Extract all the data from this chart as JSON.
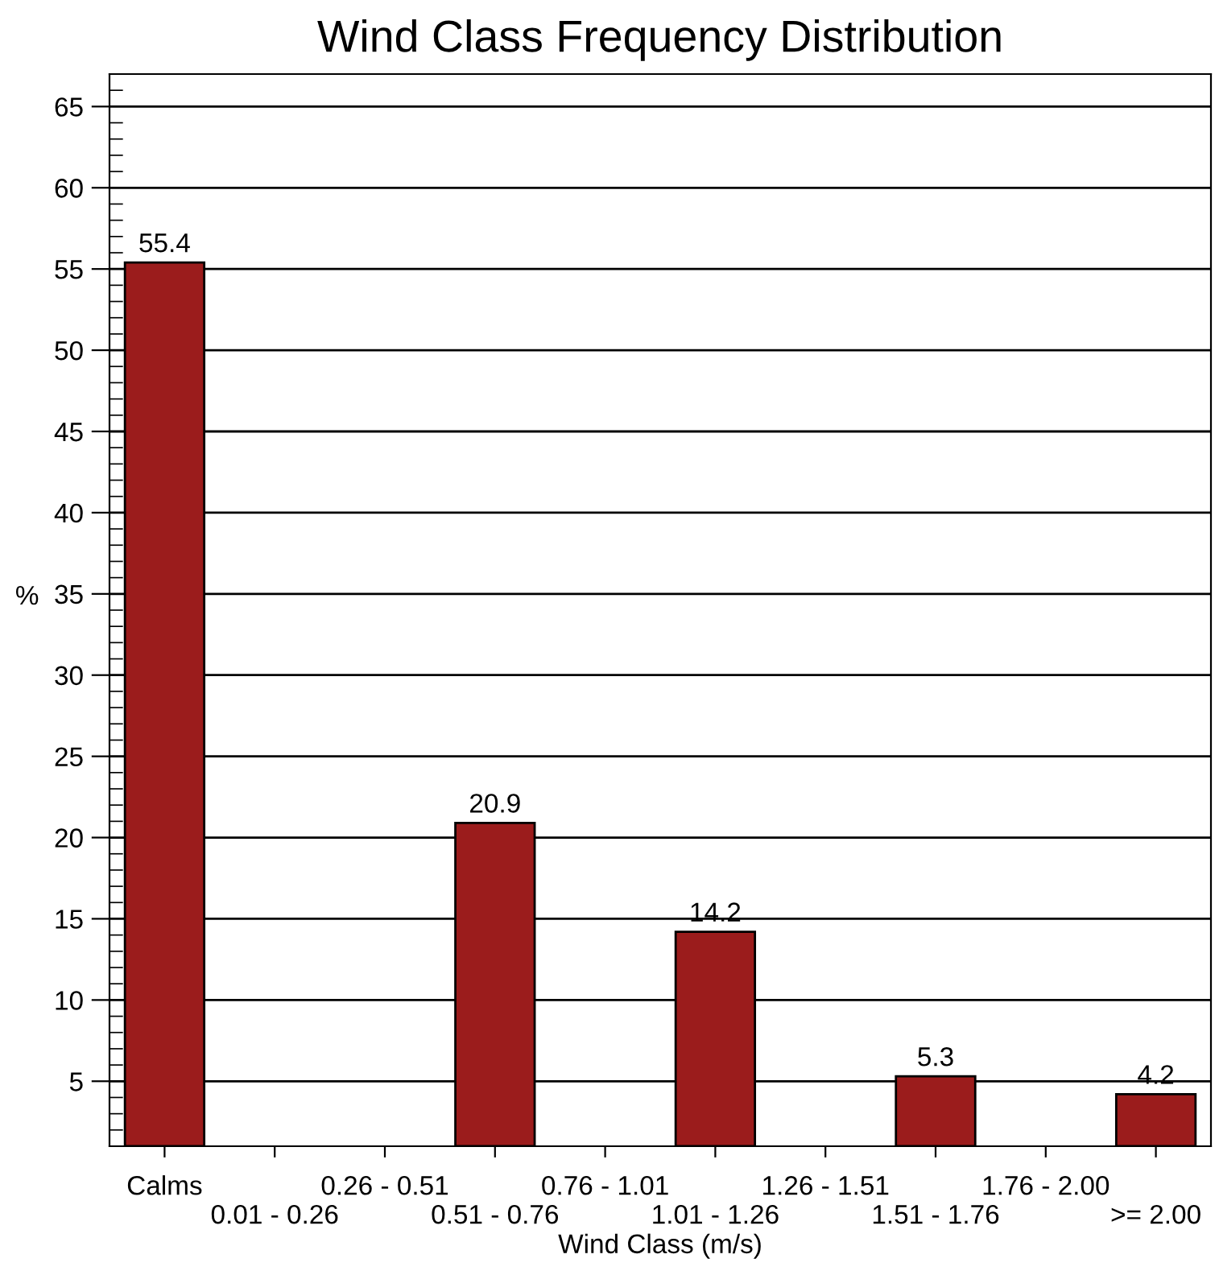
{
  "chart_data": {
    "type": "bar",
    "title": "Wind Class Frequency Distribution",
    "xlabel": "Wind Class (m/s)",
    "ylabel": "%",
    "categories": [
      "Calms",
      "0.01 - 0.26",
      "0.26 - 0.51",
      "0.51 - 0.76",
      "0.76 - 1.01",
      "1.01 - 1.26",
      "1.26 - 1.51",
      "1.51 - 1.76",
      "1.76 - 2.00",
      ">= 2.00"
    ],
    "values": [
      55.4,
      null,
      null,
      20.9,
      null,
      14.2,
      null,
      5.3,
      null,
      4.2
    ],
    "color": "#9b1c1c",
    "ylim": [
      1,
      67
    ],
    "yticks": [
      5,
      10,
      15,
      20,
      25,
      30,
      35,
      40,
      45,
      50,
      55,
      60,
      65
    ],
    "grid": "y",
    "data_labels": true
  }
}
